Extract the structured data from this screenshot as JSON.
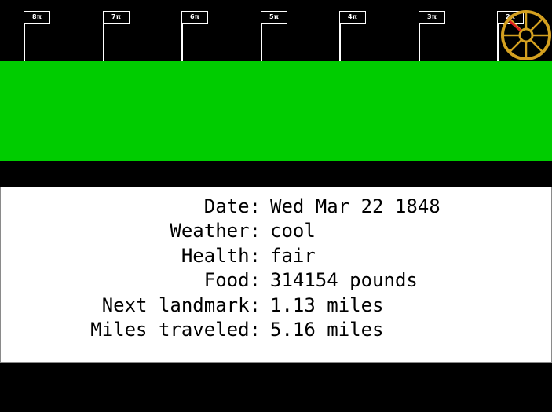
{
  "trail": {
    "markers": [
      "8π",
      "7π",
      "6π",
      "5π",
      "4π",
      "3π",
      "2π"
    ]
  },
  "wagon": {
    "icon": "wagon-wheel-icon",
    "rim_color": "#d4a020",
    "indicator_color": "#e02020"
  },
  "colors": {
    "grass": "#00cc00",
    "sky": "#000000",
    "panel": "#ffffff"
  },
  "status": {
    "date_label": "Date:",
    "date_value": "Wed Mar 22 1848",
    "weather_label": "Weather:",
    "weather_value": "cool",
    "health_label": "Health:",
    "health_value": "fair",
    "food_label": "Food:",
    "food_value": "314154 pounds",
    "next_landmark_label": "Next landmark:",
    "next_landmark_value": "1.13 miles",
    "miles_traveled_label": "Miles traveled:",
    "miles_traveled_value": "5.16 miles"
  }
}
